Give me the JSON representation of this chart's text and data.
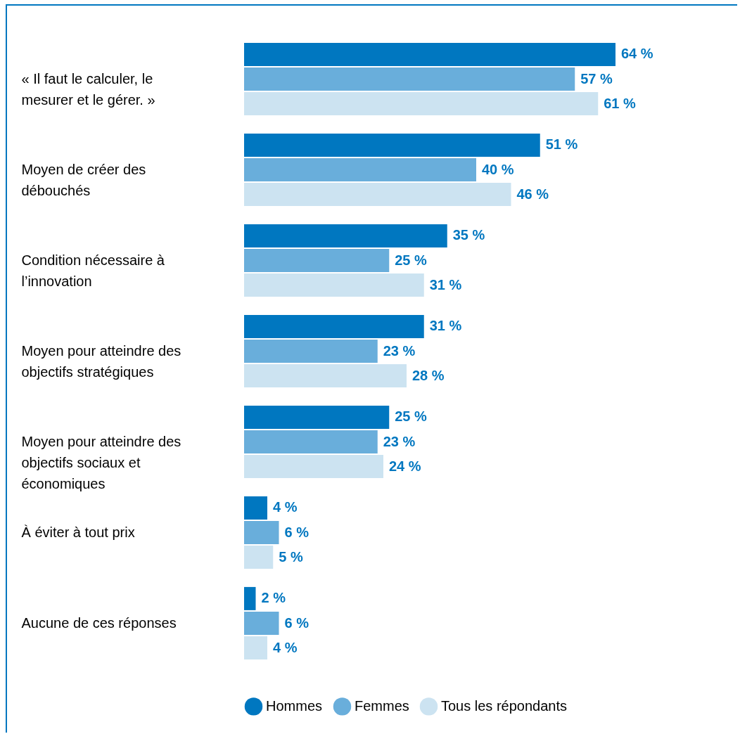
{
  "chart_data": {
    "type": "bar",
    "orientation": "horizontal",
    "categories": [
      "« Il faut le calculer, le mesurer et le gérer. »",
      "Moyen de créer des débouchés",
      "Condition nécessaire à l’innovation",
      "Moyen pour atteindre des objectifs stratégiques",
      "Moyen pour atteindre des objectifs sociaux et économiques",
      "À éviter à tout prix",
      "Aucune de ces réponses"
    ],
    "series": [
      {
        "name": "Hommes",
        "color": "#0077c0",
        "values": [
          64,
          51,
          35,
          31,
          25,
          4,
          2
        ],
        "value_labels": [
          "64 %",
          "51 %",
          "35 %",
          "31 %",
          "25 %",
          "4 %",
          "2 %"
        ]
      },
      {
        "name": "Femmes",
        "color": "#69aedb",
        "values": [
          57,
          40,
          25,
          23,
          23,
          6,
          6
        ],
        "value_labels": [
          "57 %",
          "40 %",
          "25 %",
          "23 %",
          "23 %",
          "6 %",
          "6 %"
        ]
      },
      {
        "name": "Tous les répondants",
        "color": "#cce3f1",
        "values": [
          61,
          46,
          31,
          28,
          24,
          5,
          4
        ],
        "value_labels": [
          "61 %",
          "46 %",
          "31 %",
          "28 %",
          "24 %",
          "5 %",
          "4 %"
        ]
      }
    ],
    "legend": "bottom"
  }
}
